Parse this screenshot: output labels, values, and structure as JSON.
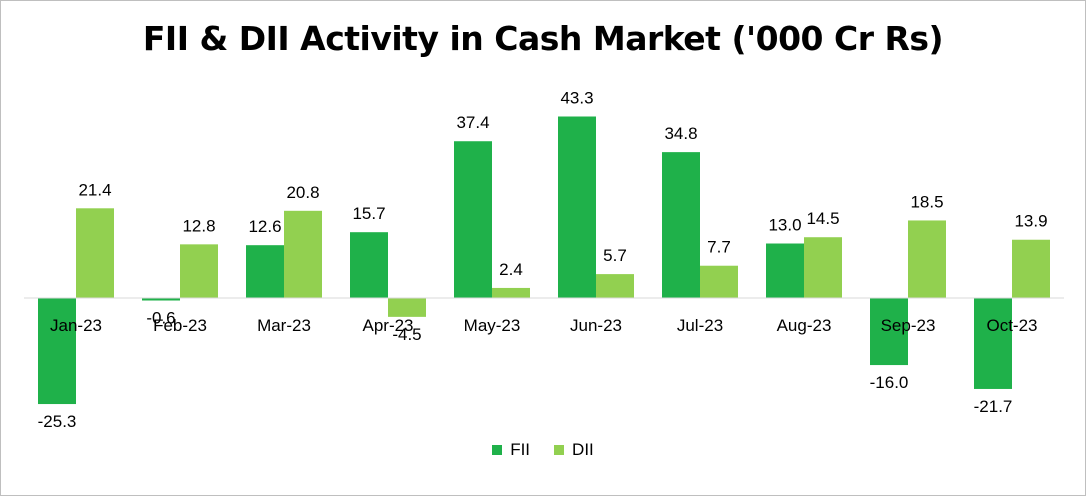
{
  "chart_data": {
    "type": "bar",
    "title": "FII & DII Activity in Cash Market ('000 Cr Rs)",
    "categories": [
      "Jan-23",
      "Feb-23",
      "Mar-23",
      "Apr-23",
      "May-23",
      "Jun-23",
      "Jul-23",
      "Aug-23",
      "Sep-23",
      "Oct-23"
    ],
    "series": [
      {
        "name": "FII",
        "values": [
          -25.3,
          -0.6,
          12.6,
          15.7,
          37.4,
          43.3,
          34.8,
          13.0,
          -16.0,
          -21.7
        ],
        "color": "#1fb14a"
      },
      {
        "name": "DII",
        "values": [
          21.4,
          12.8,
          20.8,
          -4.5,
          2.4,
          5.7,
          7.7,
          14.5,
          18.5,
          13.9
        ],
        "color": "#92d050"
      }
    ],
    "xlabel": "",
    "ylabel": "",
    "ylim": [
      -30,
      45
    ],
    "grid": false,
    "legend_position": "bottom"
  }
}
